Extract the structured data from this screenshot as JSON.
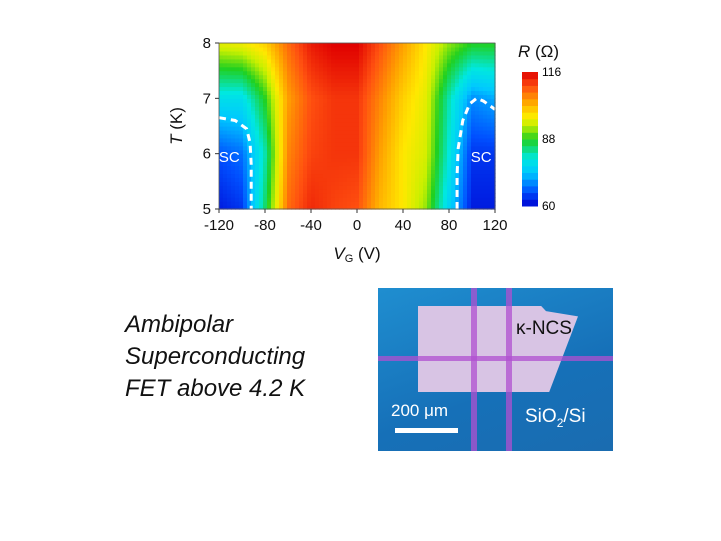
{
  "chart_data": {
    "type": "heatmap",
    "xlabel_main": "V",
    "xlabel_sub": "G",
    "xlabel_unit": " (V)",
    "ylabel_main": "T",
    "ylabel_unit": " (K)",
    "colorbar_title_main": "R",
    "colorbar_title_unit": " (Ω)",
    "xlim": [
      -120,
      120
    ],
    "ylim": [
      5,
      8
    ],
    "xticks": [
      "-120",
      "-80",
      "-40",
      "0",
      "40",
      "80",
      "120"
    ],
    "xtick_values": [
      -120,
      -80,
      -40,
      0,
      40,
      80,
      120
    ],
    "yticks": [
      "5",
      "6",
      "7",
      "8"
    ],
    "ytick_values": [
      5,
      6,
      7,
      8
    ],
    "colorbar_range": [
      60,
      116
    ],
    "colorbar_ticks": [
      "116",
      "88",
      "60"
    ],
    "colorbar_tick_values": [
      116,
      88,
      60
    ],
    "x": [
      -120,
      -100,
      -80,
      -60,
      -40,
      -20,
      0,
      20,
      40,
      60,
      80,
      100,
      120
    ],
    "y": [
      5,
      6,
      7,
      8
    ],
    "z": [
      [
        62,
        64,
        85,
        108,
        113,
        111,
        110,
        102,
        98,
        92,
        76,
        62,
        62
      ],
      [
        66,
        68,
        82,
        106,
        111,
        112,
        112,
        104,
        98,
        95,
        80,
        64,
        64
      ],
      [
        78,
        78,
        88,
        104,
        110,
        112,
        112,
        106,
        100,
        96,
        82,
        70,
        72
      ],
      [
        96,
        97,
        100,
        108,
        114,
        116,
        116,
        110,
        104,
        98,
        92,
        88,
        88
      ]
    ],
    "annotations": [
      {
        "label": "SC",
        "at": [
          -111,
          5.85
        ],
        "boundary": [
          [
            -120,
            6.65
          ],
          [
            -106,
            6.6
          ],
          [
            -96,
            6.45
          ],
          [
            -93,
            6.2
          ],
          [
            -92,
            5.8
          ],
          [
            -92,
            5.0
          ]
        ]
      },
      {
        "label": "SC",
        "at": [
          108,
          5.85
        ],
        "boundary": [
          [
            87,
            5.0
          ],
          [
            87,
            5.6
          ],
          [
            88,
            6.1
          ],
          [
            92,
            6.6
          ],
          [
            98,
            6.9
          ],
          [
            104,
            7.0
          ],
          [
            110,
            6.95
          ],
          [
            120,
            6.8
          ]
        ]
      }
    ]
  },
  "caption": [
    "Ambipolar",
    "Superconducting",
    "FET above 4.2 K"
  ],
  "photo": {
    "sample_label": "κ-NCS",
    "scale_label": "200 μm",
    "substrate_main": "SiO",
    "substrate_sub": "2",
    "substrate_rest": "/Si"
  }
}
